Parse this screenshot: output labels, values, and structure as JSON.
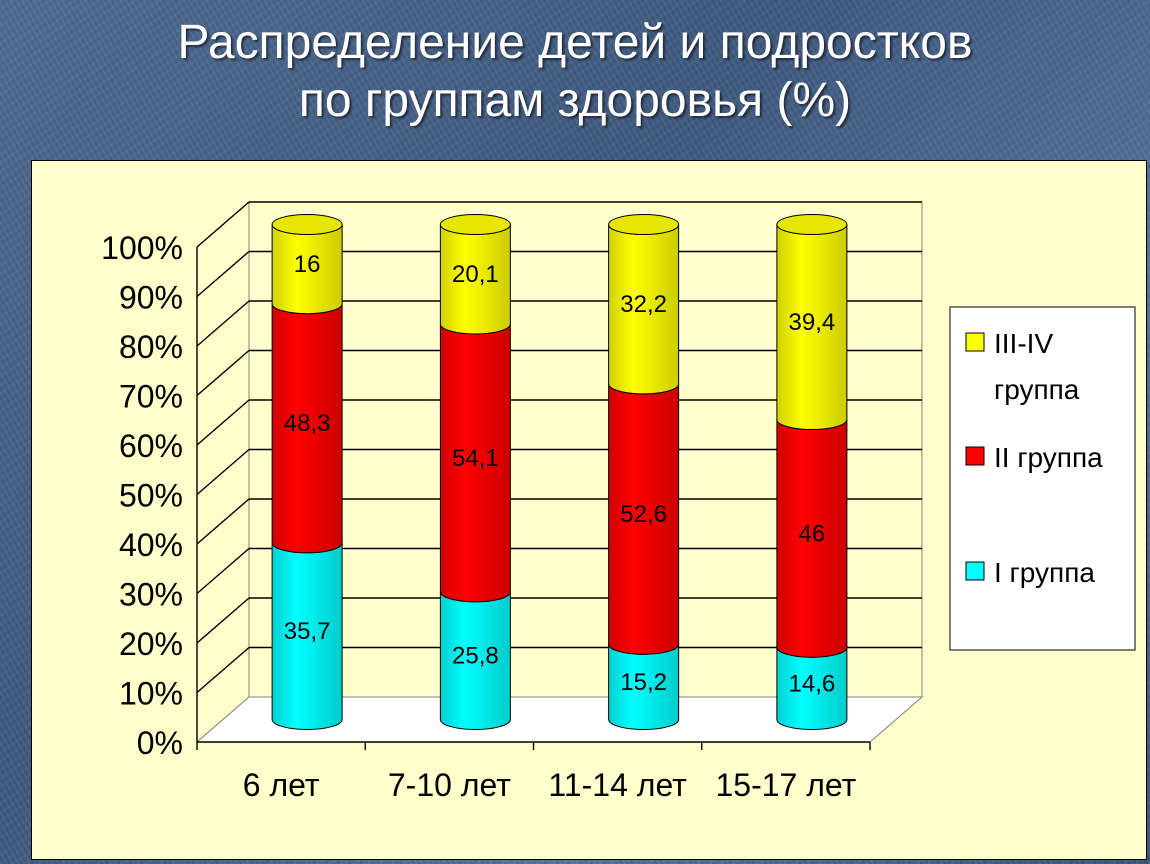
{
  "slide": {
    "title_line1": "Распределение детей и подростков",
    "title_line2": "по группам здоровья (%)"
  },
  "chart_data": {
    "type": "bar",
    "stacked": true,
    "style": "3d-cylinder",
    "categories": [
      "6 лет",
      "7-10 лет",
      "11-14 лет",
      "15-17 лет"
    ],
    "series": [
      {
        "name": "I группа",
        "color": "#00ffff",
        "values": [
          35.7,
          25.8,
          15.2,
          14.6
        ],
        "labels": [
          "35,7",
          "25,8",
          "15,2",
          "14,6"
        ]
      },
      {
        "name": "II группа",
        "color": "#ff0000",
        "values": [
          48.3,
          54.1,
          52.6,
          46
        ],
        "labels": [
          "48,3",
          "54,1",
          "52,6",
          "46"
        ]
      },
      {
        "name": "III-IV группа",
        "color": "#ffff00",
        "values": [
          16,
          20.1,
          32.2,
          39.4
        ],
        "labels": [
          "16",
          "20,1",
          "32,2",
          "39,4"
        ]
      }
    ],
    "yticks": [
      "0%",
      "10%",
      "20%",
      "30%",
      "40%",
      "50%",
      "60%",
      "70%",
      "80%",
      "90%",
      "100%"
    ],
    "ylim": [
      0,
      100
    ],
    "grid": true,
    "legend_position": "right",
    "legend_entries": [
      "III-IV группа",
      "II группа",
      "I группа"
    ],
    "plot_background": "#ffffcc"
  }
}
